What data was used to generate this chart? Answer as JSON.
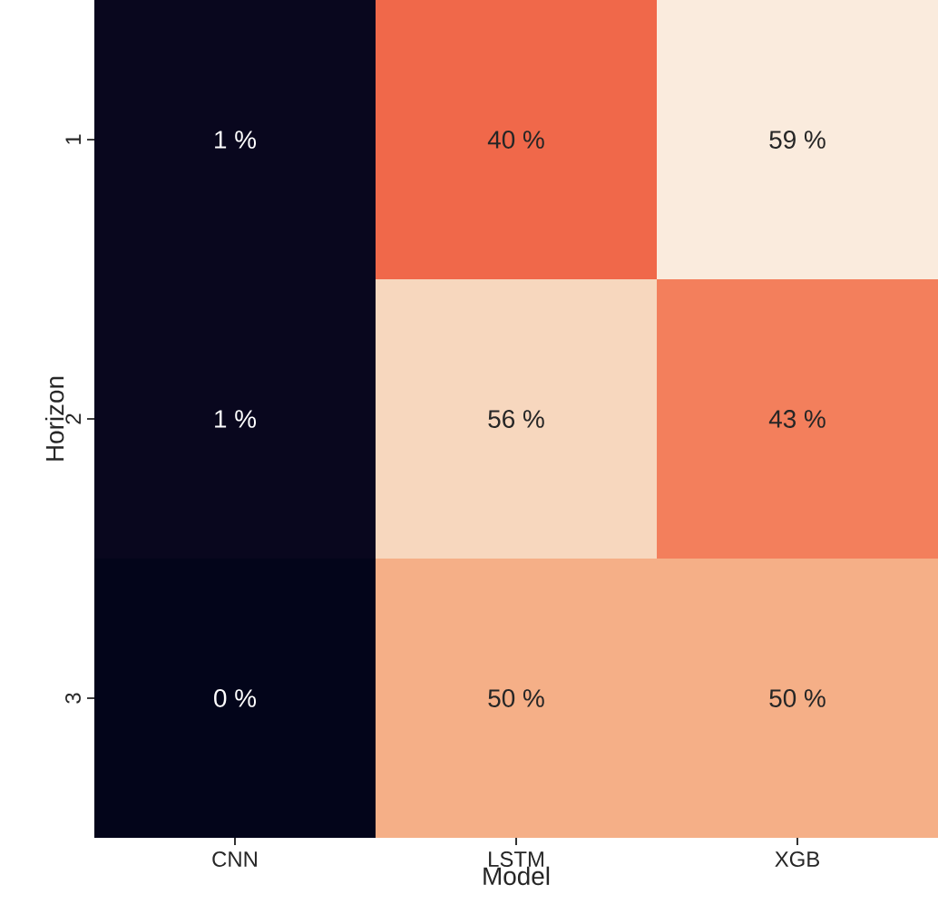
{
  "chart_data": {
    "type": "heatmap",
    "xlabel": "Model",
    "ylabel": "Horizon",
    "categories": [
      "CNN",
      "LSTM",
      "XGB"
    ],
    "y_categories": [
      "1",
      "2",
      "3"
    ],
    "cells": [
      [
        1,
        40,
        59
      ],
      [
        1,
        56,
        43
      ],
      [
        0,
        50,
        50
      ]
    ],
    "cell_labels": [
      [
        "1 %",
        "40 %",
        "59 %"
      ],
      [
        "1 %",
        "56 %",
        "43 %"
      ],
      [
        "0 %",
        "50 %",
        "50 %"
      ]
    ]
  }
}
